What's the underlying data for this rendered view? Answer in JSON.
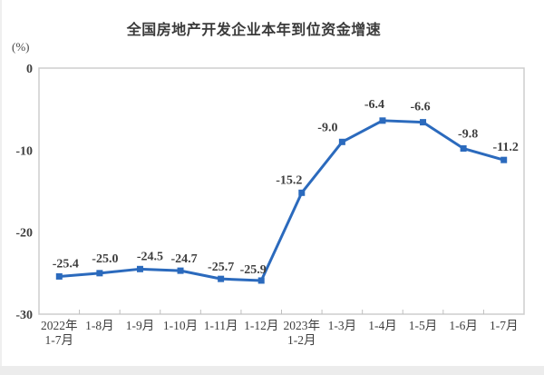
{
  "chart": {
    "title": "全国房地产开发企业本年到位资金增速",
    "unit_label": "(%)"
  },
  "chart_data": {
    "type": "line",
    "title": "全国房地产开发企业本年到位资金增速",
    "ylabel": "(%)",
    "xlabel": "",
    "categories": [
      "2022年\n1-7月",
      "1-8月",
      "1-9月",
      "1-10月",
      "1-11月",
      "1-12月",
      "2023年\n1-2月",
      "1-3月",
      "1-4月",
      "1-5月",
      "1-6月",
      "1-7月"
    ],
    "values": [
      -25.4,
      -25.0,
      -24.5,
      -24.7,
      -25.7,
      -25.9,
      -15.2,
      -9.0,
      -6.4,
      -6.6,
      -9.8,
      -11.2
    ],
    "data_labels": [
      "-25.4",
      "-25.0",
      "-24.5",
      "-24.7",
      "-25.7",
      "-25.9",
      "-15.2",
      "-9.0",
      "-6.4",
      "-6.6",
      "-9.8",
      "-11.2"
    ],
    "yticks": [
      0,
      -10,
      -20,
      -30
    ],
    "ytick_labels": [
      "0",
      "-10",
      "-20",
      "-30"
    ],
    "ylim": [
      -30,
      0
    ],
    "grid": false,
    "legend": "none",
    "marker": "square",
    "colors": {
      "line": "#2b6abd",
      "marker": "#2b6abd",
      "plot_border": "#cdcdcd",
      "tick": "#bfbfbf",
      "text": "#3e3e3e",
      "title_text": "#3a3a3a"
    }
  }
}
